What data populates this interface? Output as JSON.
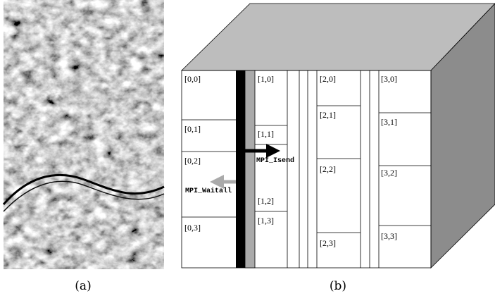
{
  "captions": [
    "(a)",
    "(b)"
  ],
  "blocks": [
    "[0,0]",
    "[0,1]",
    "[0,2]",
    "[0,3]",
    "[1,0]",
    "[1,1]",
    "[1,2]",
    "[1,3]",
    "[2,0]",
    "[2,1]",
    "[2,2]",
    "[2,3]",
    "[3,0]",
    "[3,1]",
    "[3,2]",
    "[3,3]"
  ],
  "send_label": "MPI_Isend",
  "wait_label": "MPI_Waitall"
}
